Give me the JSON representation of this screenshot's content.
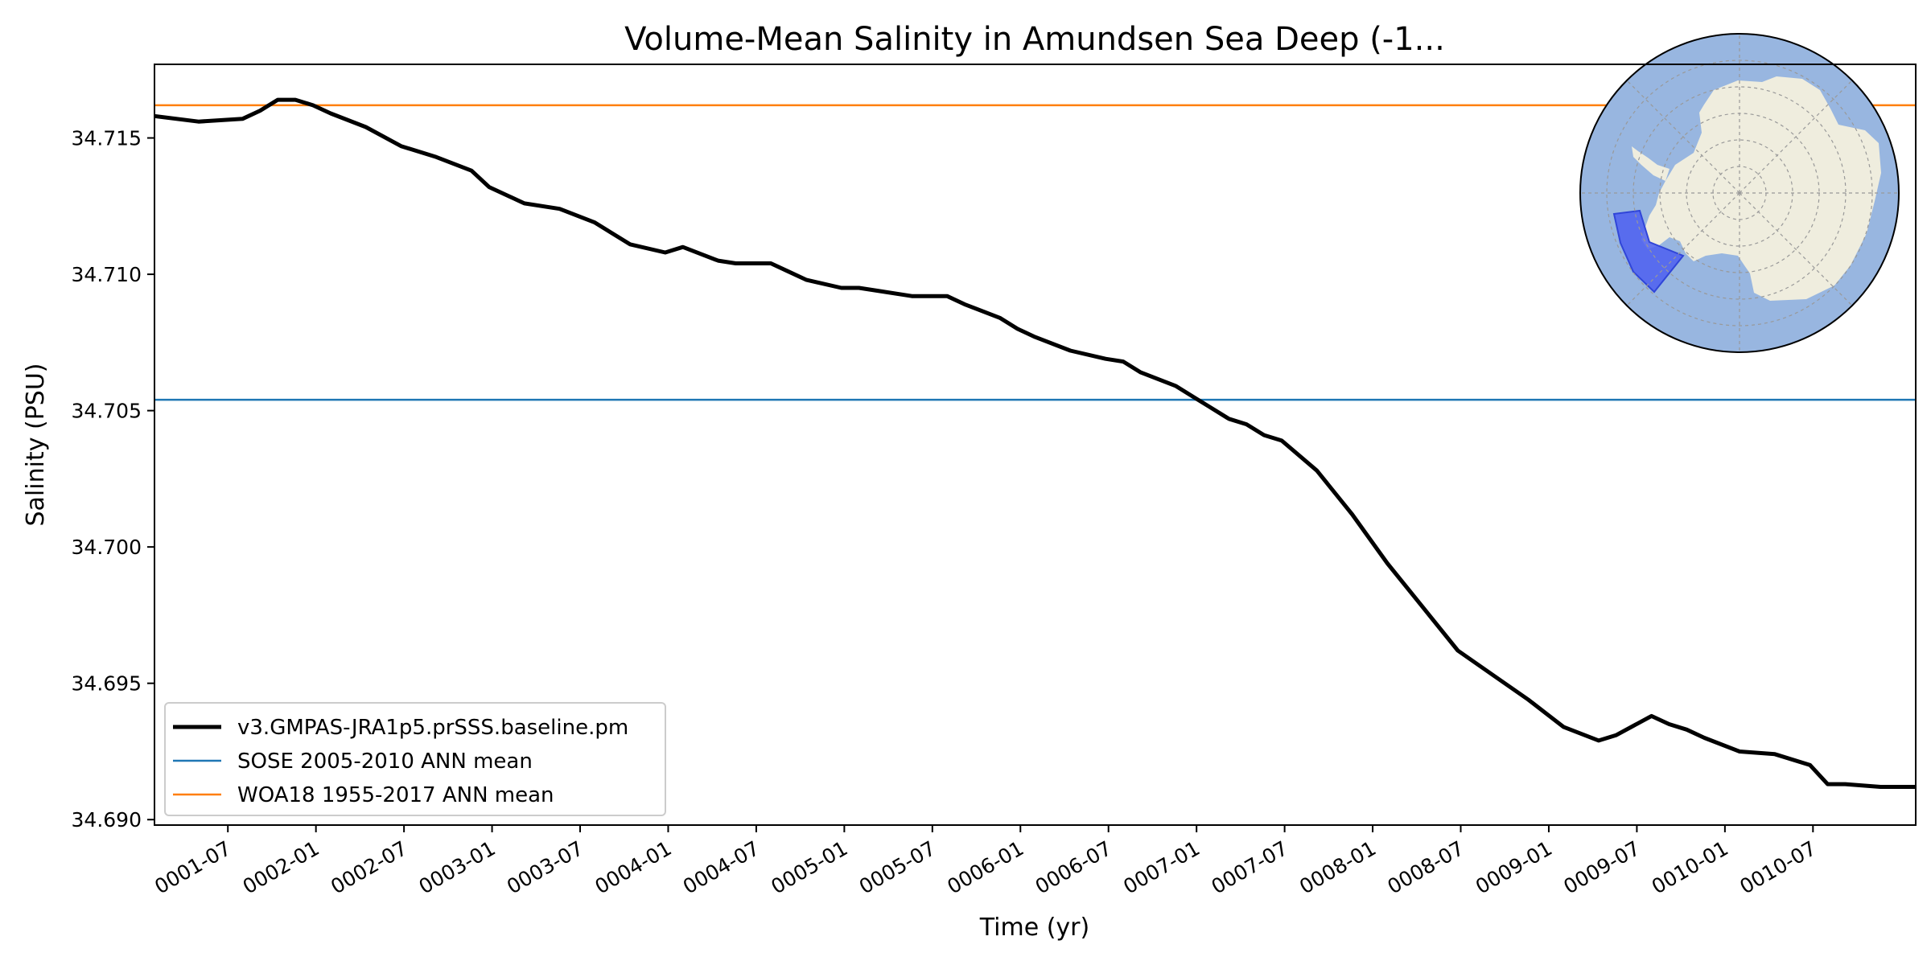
{
  "chart_data": {
    "type": "line",
    "title": "Volume-Mean Salinity in Amundsen Sea Deep (-1...",
    "xlabel": "Time (yr)",
    "ylabel": "Salinity (PSU)",
    "xlim": [
      1.0,
      11.0
    ],
    "ylim": [
      34.6898,
      34.7177
    ],
    "y_ticks": [
      34.69,
      34.695,
      34.7,
      34.705,
      34.71,
      34.715
    ],
    "y_tick_labels": [
      "34.690",
      "34.695",
      "34.700",
      "34.705",
      "34.710",
      "34.715"
    ],
    "x_ticks": [
      1.4167,
      1.9167,
      2.4167,
      2.9167,
      3.4167,
      3.9167,
      4.4167,
      4.9167,
      5.4167,
      5.9167,
      6.4167,
      6.9167,
      7.4167,
      7.9167,
      8.4167,
      8.9167,
      9.4167,
      9.9167,
      10.4167
    ],
    "x_tick_labels": [
      "0001-07",
      "0002-01",
      "0002-07",
      "0003-01",
      "0003-07",
      "0004-01",
      "0004-07",
      "0005-01",
      "0005-07",
      "0006-01",
      "0006-07",
      "0007-01",
      "0007-07",
      "0008-01",
      "0008-07",
      "0009-01",
      "0009-07",
      "0010-01",
      "0010-07"
    ],
    "grid": false,
    "legend_position": "lower-left",
    "series": [
      {
        "name": "v3.GMPAS-JRA1p5.prSSS.baseline.pm",
        "color": "#000000",
        "style": "thick",
        "x": [
          1.0,
          1.25,
          1.5,
          1.6,
          1.7,
          1.8,
          1.9,
          2.0,
          2.2,
          2.4,
          2.6,
          2.8,
          2.9,
          3.1,
          3.3,
          3.5,
          3.7,
          3.9,
          4.0,
          4.2,
          4.3,
          4.5,
          4.6,
          4.7,
          4.9,
          5.0,
          5.1,
          5.3,
          5.5,
          5.6,
          5.8,
          5.9,
          6.0,
          6.2,
          6.4,
          6.5,
          6.6,
          6.8,
          6.9,
          7.0,
          7.1,
          7.2,
          7.3,
          7.4,
          7.6,
          7.8,
          8.0,
          8.2,
          8.4,
          8.6,
          8.8,
          9.0,
          9.2,
          9.3,
          9.5,
          9.6,
          9.7,
          9.8,
          10.0,
          10.2,
          10.4,
          10.5,
          10.6,
          10.8,
          11.0
        ],
        "values": [
          34.7158,
          34.7156,
          34.7157,
          34.716,
          34.7164,
          34.7164,
          34.7162,
          34.7159,
          34.7154,
          34.7147,
          34.7143,
          34.7138,
          34.7132,
          34.7126,
          34.7124,
          34.7119,
          34.7111,
          34.7108,
          34.711,
          34.7105,
          34.7104,
          34.7104,
          34.7101,
          34.7098,
          34.7095,
          34.7095,
          34.7094,
          34.7092,
          34.7092,
          34.7089,
          34.7084,
          34.708,
          34.7077,
          34.7072,
          34.7069,
          34.7068,
          34.7064,
          34.7059,
          34.7055,
          34.7051,
          34.7047,
          34.7045,
          34.7041,
          34.7039,
          34.7028,
          34.7012,
          34.6994,
          34.6978,
          34.6962,
          34.6953,
          34.6944,
          34.6934,
          34.6929,
          34.6931,
          34.6938,
          34.6935,
          34.6933,
          34.693,
          34.6925,
          34.6924,
          34.692,
          34.6913,
          34.6913,
          34.6912,
          34.6912
        ]
      },
      {
        "name": "SOSE 2005-2010 ANN mean",
        "color": "#1f77b4",
        "style": "thin",
        "x": [
          1.0,
          11.0
        ],
        "values": [
          34.7054,
          34.7054
        ]
      },
      {
        "name": "WOA18 1955-2017 ANN mean",
        "color": "#ff7f0e",
        "style": "thin",
        "x": [
          1.0,
          11.0
        ],
        "values": [
          34.7162,
          34.7162
        ]
      }
    ],
    "inset": {
      "type": "polar-map",
      "ocean_color": "#98b6e0",
      "land_color": "#efedde",
      "region_color": "#4c5ff0",
      "graticule_color": "#999999"
    }
  }
}
